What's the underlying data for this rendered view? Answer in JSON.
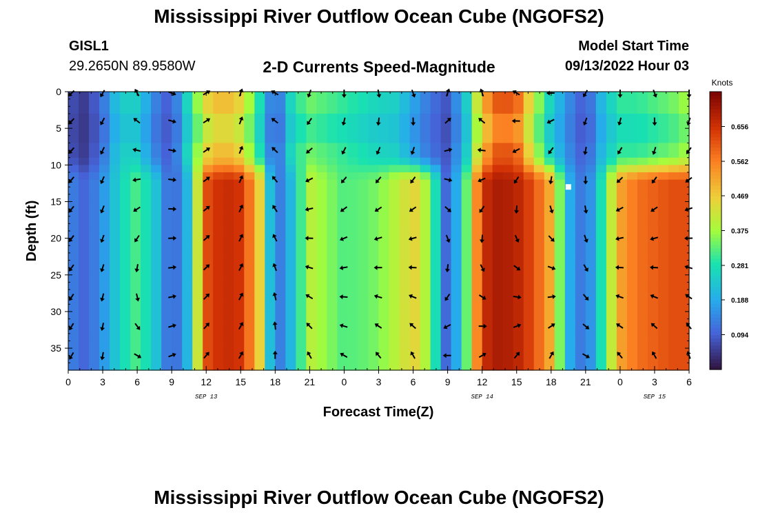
{
  "header": {
    "title": "Mississippi River Outflow Ocean Cube (NGOFS2)",
    "station_id": "GISL1",
    "station_coords": "29.2650N  89.9580W",
    "plot_title": "2-D Currents Speed-Magnitude",
    "model_start_label": "Model Start Time",
    "model_start_value": "09/13/2022 Hour 03"
  },
  "footer": {
    "title": "Mississippi River Outflow Ocean Cube (NGOFS2)"
  },
  "chart_data": {
    "type": "heatmap",
    "title": "2-D Currents Speed-Magnitude",
    "xlabel": "Forecast Time(Z)",
    "ylabel": "Depth (ft)",
    "x_ticks": [
      0,
      3,
      6,
      9,
      12,
      15,
      18,
      21,
      24,
      27,
      30,
      33,
      36,
      39,
      42,
      45,
      48,
      51,
      54
    ],
    "x_tick_labels": [
      "0",
      "3",
      "6",
      "9",
      "12",
      "15",
      "18",
      "21",
      "0",
      "3",
      "6",
      "9",
      "12",
      "15",
      "18",
      "21",
      "0",
      "3",
      "6"
    ],
    "date_labels": [
      {
        "x": 12,
        "label": "SEP 13"
      },
      {
        "x": 36,
        "label": "SEP 14"
      },
      {
        "x": 51,
        "label": "SEP 15"
      }
    ],
    "xlim": [
      0,
      54
    ],
    "y_ticks": [
      0,
      5,
      10,
      15,
      20,
      25,
      30,
      35
    ],
    "y_tick_labels": [
      "0",
      "5",
      "10",
      "15",
      "20",
      "25",
      "30",
      "35"
    ],
    "ylim": [
      0,
      38
    ],
    "colorbar": {
      "title": "Knots",
      "range": [
        0.0,
        0.75
      ],
      "ticks": [
        0.094,
        0.188,
        0.281,
        0.375,
        0.469,
        0.562,
        0.656
      ],
      "tick_labels": [
        "0.094",
        "0.188",
        "0.281",
        "0.375",
        "0.469",
        "0.562",
        "0.656"
      ]
    },
    "speed_columns": {
      "times": [
        0,
        1.5,
        3,
        4.5,
        6,
        7.5,
        9,
        10.5,
        12,
        13.5,
        15,
        16.5,
        18,
        19.5,
        21,
        22.5,
        24,
        25.5,
        27,
        28.5,
        30,
        31.5,
        33,
        34.5,
        36,
        37.5,
        39,
        40.5,
        42,
        43.5,
        45,
        46.5,
        48,
        49.5,
        51,
        52.5,
        54
      ],
      "surface_speed": [
        0.08,
        0.05,
        0.12,
        0.25,
        0.25,
        0.14,
        0.08,
        0.28,
        0.45,
        0.5,
        0.45,
        0.3,
        0.08,
        0.28,
        0.34,
        0.32,
        0.3,
        0.28,
        0.26,
        0.25,
        0.18,
        0.12,
        0.08,
        0.22,
        0.5,
        0.62,
        0.6,
        0.4,
        0.25,
        0.15,
        0.08,
        0.22,
        0.3,
        0.3,
        0.32,
        0.34,
        0.38
      ],
      "deep_speed": [
        0.14,
        0.1,
        0.16,
        0.26,
        0.32,
        0.24,
        0.08,
        0.22,
        0.62,
        0.67,
        0.65,
        0.5,
        0.1,
        0.22,
        0.4,
        0.36,
        0.32,
        0.33,
        0.35,
        0.4,
        0.46,
        0.36,
        0.08,
        0.3,
        0.66,
        0.7,
        0.68,
        0.62,
        0.5,
        0.2,
        0.1,
        0.3,
        0.52,
        0.58,
        0.6,
        0.62,
        0.62
      ]
    },
    "vectors": {
      "times": [
        0,
        3,
        6,
        9,
        12,
        15,
        18,
        21,
        24,
        27,
        30,
        33,
        36,
        39,
        42,
        45,
        48,
        51,
        54
      ],
      "depths": [
        0,
        4,
        8,
        12,
        16,
        20,
        24,
        28,
        32,
        36
      ],
      "dir_top_deg": [
        225,
        210,
        330,
        110,
        60,
        20,
        300,
        200,
        180,
        170,
        160,
        20,
        340,
        300,
        270,
        210,
        180,
        160,
        180
      ],
      "dir_bottom_deg": [
        210,
        190,
        120,
        70,
        40,
        30,
        360,
        330,
        300,
        320,
        330,
        270,
        60,
        40,
        30,
        120,
        320,
        330,
        340
      ]
    },
    "marker": {
      "x": 43.5,
      "y": 13,
      "label": "white square"
    }
  }
}
